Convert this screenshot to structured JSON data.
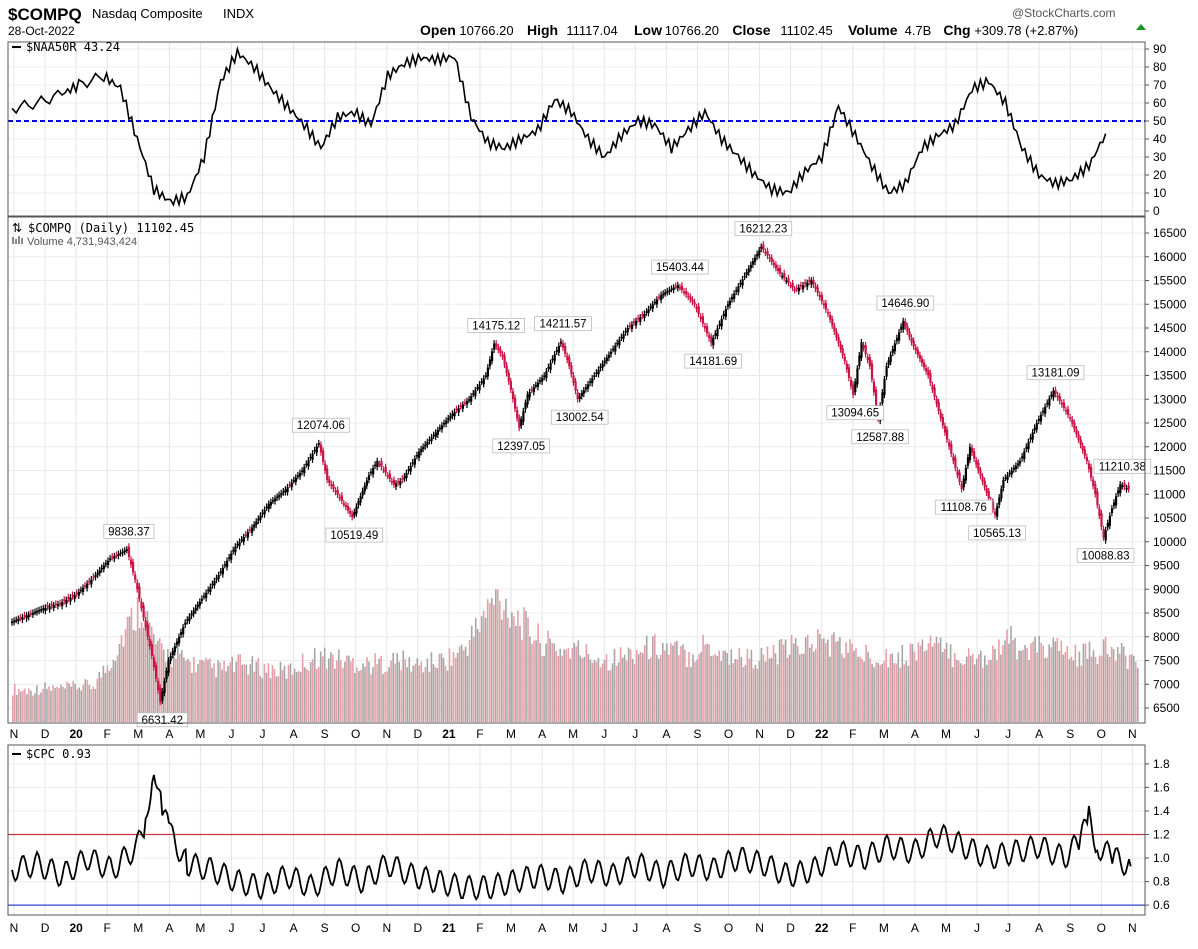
{
  "header": {
    "symbol": "$COMPQ",
    "name": "Nasdaq Composite",
    "exchange": "INDX",
    "date": "28-Oct-2022",
    "watermark": "@StockCharts.com",
    "stats": [
      {
        "label": "Open",
        "value": "10766.20"
      },
      {
        "label": "High",
        "value": "11117.04"
      },
      {
        "label": "Low",
        "value": "10766.20"
      },
      {
        "label": "Close",
        "value": "11102.45"
      },
      {
        "label": "Volume",
        "value": "4.7B"
      },
      {
        "label": "Chg",
        "value": "+309.78 (+2.87%)"
      }
    ]
  },
  "panels": {
    "top": {
      "legend": "$NAA50R 43.24"
    },
    "main": {
      "legend": "$COMPQ (Daily) 11102.45",
      "volume_legend": "Volume 4,731,943,424"
    },
    "bottom": {
      "legend": "$CPC 0.93"
    }
  },
  "colors": {
    "up": "#000000",
    "down": "#cc1144",
    "vol_up": "#a6a6a6",
    "vol_down": "#e8a0a8",
    "ref50": "#0000dd",
    "cpc_high": "#cc3344",
    "cpc_low": "#3344cc"
  },
  "chart_data": [
    {
      "type": "line",
      "name": "$NAA50R",
      "ylim": [
        0,
        90
      ],
      "yticks": [
        0,
        10,
        20,
        30,
        40,
        50,
        60,
        70,
        80,
        90
      ],
      "reference_line": 50,
      "points": [
        [
          0,
          57
        ],
        [
          3,
          60
        ],
        [
          6,
          65
        ],
        [
          8,
          70
        ],
        [
          11,
          75
        ],
        [
          13,
          68
        ],
        [
          15,
          40
        ],
        [
          17,
          12
        ],
        [
          19,
          5
        ],
        [
          21,
          8
        ],
        [
          23,
          30
        ],
        [
          25,
          72
        ],
        [
          27,
          88
        ],
        [
          29,
          80
        ],
        [
          31,
          68
        ],
        [
          33,
          58
        ],
        [
          35,
          48
        ],
        [
          37,
          35
        ],
        [
          39,
          52
        ],
        [
          41,
          55
        ],
        [
          43,
          48
        ],
        [
          45,
          75
        ],
        [
          47,
          82
        ],
        [
          49,
          85
        ],
        [
          51,
          84
        ],
        [
          53,
          86
        ],
        [
          55,
          52
        ],
        [
          57,
          38
        ],
        [
          59,
          35
        ],
        [
          61,
          40
        ],
        [
          63,
          45
        ],
        [
          65,
          62
        ],
        [
          67,
          55
        ],
        [
          69,
          40
        ],
        [
          71,
          30
        ],
        [
          73,
          42
        ],
        [
          75,
          50
        ],
        [
          77,
          48
        ],
        [
          79,
          35
        ],
        [
          81,
          45
        ],
        [
          83,
          55
        ],
        [
          85,
          40
        ],
        [
          87,
          30
        ],
        [
          89,
          20
        ],
        [
          91,
          12
        ],
        [
          93,
          10
        ],
        [
          95,
          22
        ],
        [
          97,
          30
        ],
        [
          99,
          58
        ],
        [
          101,
          42
        ],
        [
          103,
          25
        ],
        [
          105,
          10
        ],
        [
          107,
          15
        ],
        [
          109,
          35
        ],
        [
          111,
          42
        ],
        [
          113,
          48
        ],
        [
          115,
          68
        ],
        [
          117,
          72
        ],
        [
          119,
          60
        ],
        [
          121,
          35
        ],
        [
          123,
          20
        ],
        [
          125,
          15
        ],
        [
          127,
          18
        ],
        [
          129,
          25
        ],
        [
          131,
          43
        ]
      ],
      "x_ticks": [
        "N",
        "D",
        "20",
        "F",
        "M",
        "A",
        "M",
        "J",
        "J",
        "A",
        "S",
        "O",
        "N",
        "D",
        "21",
        "F",
        "M",
        "A",
        "M",
        "J",
        "J",
        "A",
        "S",
        "O",
        "N",
        "D",
        "22",
        "F",
        "M",
        "A",
        "M",
        "J",
        "J",
        "A",
        "S",
        "O",
        "N"
      ]
    },
    {
      "type": "candlestick",
      "name": "$COMPQ (Daily)",
      "ylim": [
        6250,
        16550
      ],
      "yticks": [
        6500,
        7000,
        7500,
        8000,
        8500,
        9000,
        9500,
        10000,
        10500,
        11000,
        11500,
        12000,
        12500,
        13000,
        13500,
        14000,
        14500,
        15000,
        15500,
        16000,
        16500
      ],
      "x_ticks": [
        "N",
        "D",
        "20",
        "F",
        "M",
        "A",
        "M",
        "J",
        "J",
        "A",
        "S",
        "O",
        "N",
        "D",
        "21",
        "F",
        "M",
        "A",
        "M",
        "J",
        "J",
        "A",
        "S",
        "O",
        "N",
        "D",
        "22",
        "F",
        "M",
        "A",
        "M",
        "J",
        "J",
        "A",
        "S",
        "O",
        "N"
      ],
      "path": [
        [
          0,
          8300
        ],
        [
          2,
          8450
        ],
        [
          4,
          8600
        ],
        [
          6,
          8700
        ],
        [
          8,
          8900
        ],
        [
          10,
          9250
        ],
        [
          12,
          9650
        ],
        [
          14,
          9838
        ],
        [
          15,
          9200
        ],
        [
          17,
          7600
        ],
        [
          18,
          6631
        ],
        [
          19,
          7500
        ],
        [
          21,
          8300
        ],
        [
          23,
          8800
        ],
        [
          25,
          9300
        ],
        [
          27,
          9900
        ],
        [
          29,
          10300
        ],
        [
          31,
          10800
        ],
        [
          33,
          11100
        ],
        [
          35,
          11500
        ],
        [
          37,
          12074
        ],
        [
          38,
          11300
        ],
        [
          40,
          10800
        ],
        [
          41,
          10519
        ],
        [
          43,
          11400
        ],
        [
          44,
          11700
        ],
        [
          46,
          11200
        ],
        [
          47,
          11300
        ],
        [
          49,
          11900
        ],
        [
          51,
          12300
        ],
        [
          53,
          12700
        ],
        [
          55,
          13000
        ],
        [
          57,
          13500
        ],
        [
          58,
          14175
        ],
        [
          59,
          13900
        ],
        [
          60,
          13200
        ],
        [
          61,
          12397
        ],
        [
          62,
          13100
        ],
        [
          64,
          13500
        ],
        [
          66,
          14211
        ],
        [
          67,
          13700
        ],
        [
          68,
          13002
        ],
        [
          70,
          13500
        ],
        [
          72,
          14000
        ],
        [
          74,
          14500
        ],
        [
          76,
          14800
        ],
        [
          78,
          15200
        ],
        [
          80,
          15403
        ],
        [
          82,
          15000
        ],
        [
          84,
          14182
        ],
        [
          86,
          15000
        ],
        [
          88,
          15600
        ],
        [
          90,
          16212
        ],
        [
          92,
          15700
        ],
        [
          94,
          15300
        ],
        [
          96,
          15500
        ],
        [
          98,
          14800
        ],
        [
          100,
          13800
        ],
        [
          101,
          13095
        ],
        [
          102,
          14200
        ],
        [
          103,
          13700
        ],
        [
          104,
          12588
        ],
        [
          105,
          13700
        ],
        [
          107,
          14647
        ],
        [
          108,
          14200
        ],
        [
          110,
          13500
        ],
        [
          112,
          12300
        ],
        [
          114,
          11109
        ],
        [
          115,
          12000
        ],
        [
          116,
          11500
        ],
        [
          118,
          10565
        ],
        [
          119,
          11300
        ],
        [
          121,
          11700
        ],
        [
          123,
          12500
        ],
        [
          125,
          13181
        ],
        [
          127,
          12600
        ],
        [
          129,
          11700
        ],
        [
          130,
          11000
        ],
        [
          131,
          10089
        ],
        [
          132,
          10700
        ],
        [
          133,
          11210
        ],
        [
          134,
          11102
        ]
      ],
      "labels": [
        {
          "i": 14,
          "value": "9838.37",
          "pos": "above"
        },
        {
          "i": 18,
          "value": "6631.42",
          "pos": "below"
        },
        {
          "i": 37,
          "value": "12074.06",
          "pos": "above"
        },
        {
          "i": 41,
          "value": "10519.49",
          "pos": "below"
        },
        {
          "i": 58,
          "value": "14175.12",
          "pos": "above"
        },
        {
          "i": 61,
          "value": "12397.05",
          "pos": "below"
        },
        {
          "i": 66,
          "value": "14211.57",
          "pos": "above"
        },
        {
          "i": 68,
          "value": "13002.54",
          "pos": "below"
        },
        {
          "i": 80,
          "value": "15403.44",
          "pos": "above"
        },
        {
          "i": 84,
          "value": "14181.69",
          "pos": "below"
        },
        {
          "i": 90,
          "value": "16212.23",
          "pos": "above"
        },
        {
          "i": 101,
          "value": "13094.65",
          "pos": "below"
        },
        {
          "i": 104,
          "value": "12587.88",
          "pos": "below"
        },
        {
          "i": 107,
          "value": "14646.90",
          "pos": "above"
        },
        {
          "i": 114,
          "value": "11108.76",
          "pos": "below"
        },
        {
          "i": 118,
          "value": "10565.13",
          "pos": "below"
        },
        {
          "i": 125,
          "value": "13181.09",
          "pos": "above"
        },
        {
          "i": 131,
          "value": "10088.83",
          "pos": "below"
        },
        {
          "i": 133,
          "value": "11210.38",
          "pos": "above"
        }
      ],
      "volume_relative": [
        0.25,
        0.24,
        0.26,
        0.25,
        0.27,
        0.28,
        0.45,
        0.7,
        0.9,
        0.55,
        0.5,
        0.45,
        0.42,
        0.4,
        0.44,
        0.42,
        0.4,
        0.38,
        0.45,
        0.5,
        0.48,
        0.46,
        0.44,
        0.45,
        0.47,
        0.43,
        0.45,
        0.48,
        0.55,
        0.75,
        0.95,
        0.85,
        0.7,
        0.6,
        0.55,
        0.55,
        0.5,
        0.48,
        0.5,
        0.55,
        0.58,
        0.55,
        0.5,
        0.6,
        0.52,
        0.5,
        0.48,
        0.5,
        0.55,
        0.58,
        0.62,
        0.6,
        0.55,
        0.5,
        0.52,
        0.48,
        0.55,
        0.6,
        0.52,
        0.5,
        0.48,
        0.55,
        0.62,
        0.52,
        0.58,
        0.55,
        0.5,
        0.52,
        0.55,
        0.5,
        0.48
      ],
      "volume_ylim": [
        0,
        1
      ]
    },
    {
      "type": "line",
      "name": "$CPC",
      "ylim": [
        0.55,
        1.85
      ],
      "yticks": [
        0.6,
        0.8,
        1.0,
        1.2,
        1.4,
        1.6,
        1.8
      ],
      "reference_lines": [
        1.2,
        0.6
      ],
      "points": [
        [
          0,
          0.9
        ],
        [
          3,
          0.95
        ],
        [
          6,
          0.85
        ],
        [
          9,
          1.0
        ],
        [
          12,
          0.9
        ],
        [
          15,
          1.1
        ],
        [
          16,
          1.3
        ],
        [
          17,
          1.8
        ],
        [
          18,
          1.4
        ],
        [
          19,
          1.2
        ],
        [
          21,
          0.95
        ],
        [
          24,
          0.9
        ],
        [
          27,
          0.8
        ],
        [
          30,
          0.75
        ],
        [
          33,
          0.85
        ],
        [
          36,
          0.75
        ],
        [
          39,
          0.9
        ],
        [
          42,
          0.8
        ],
        [
          45,
          0.95
        ],
        [
          48,
          0.85
        ],
        [
          51,
          0.8
        ],
        [
          54,
          0.75
        ],
        [
          57,
          0.75
        ],
        [
          60,
          0.8
        ],
        [
          63,
          0.85
        ],
        [
          66,
          0.8
        ],
        [
          69,
          0.9
        ],
        [
          72,
          0.85
        ],
        [
          75,
          0.95
        ],
        [
          78,
          0.85
        ],
        [
          81,
          0.95
        ],
        [
          84,
          0.9
        ],
        [
          87,
          1.0
        ],
        [
          90,
          0.95
        ],
        [
          93,
          0.85
        ],
        [
          96,
          0.9
        ],
        [
          99,
          1.05
        ],
        [
          102,
          1.0
        ],
        [
          105,
          1.1
        ],
        [
          108,
          1.05
        ],
        [
          111,
          1.2
        ],
        [
          114,
          1.1
        ],
        [
          117,
          1.0
        ],
        [
          120,
          1.05
        ],
        [
          123,
          1.1
        ],
        [
          126,
          1.0
        ],
        [
          128,
          1.15
        ],
        [
          129,
          1.35
        ],
        [
          130,
          1.1
        ],
        [
          132,
          1.0
        ],
        [
          134,
          0.93
        ]
      ],
      "x_ticks": [
        "N",
        "D",
        "20",
        "F",
        "M",
        "A",
        "M",
        "J",
        "J",
        "A",
        "S",
        "O",
        "N",
        "D",
        "21",
        "F",
        "M",
        "A",
        "M",
        "J",
        "J",
        "A",
        "S",
        "O",
        "N",
        "D",
        "22",
        "F",
        "M",
        "A",
        "M",
        "J",
        "J",
        "A",
        "S",
        "O",
        "N"
      ]
    }
  ]
}
